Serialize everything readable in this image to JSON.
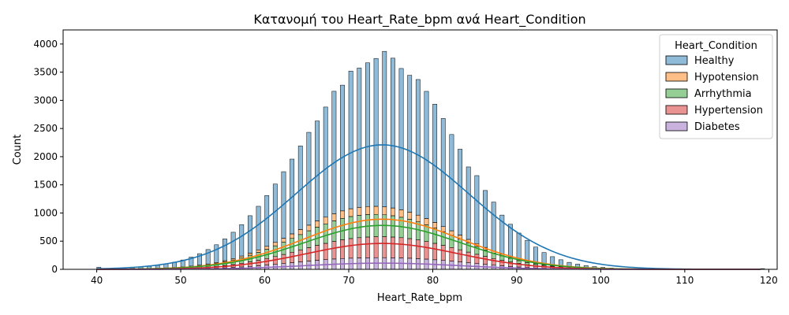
{
  "chart_data": {
    "type": "bar",
    "stacked": true,
    "title": "Κατανομή του Heart_Rate_bpm ανά Heart_Condition",
    "xlabel": "Heart_Rate_bpm",
    "ylabel": "Count",
    "xlim": [
      36,
      121
    ],
    "ylim": [
      0,
      4250
    ],
    "xticks": [
      40,
      50,
      60,
      70,
      80,
      90,
      100,
      110,
      120
    ],
    "yticks": [
      0,
      500,
      1000,
      1500,
      2000,
      2500,
      3000,
      3500,
      4000
    ],
    "bin_width": 0.5,
    "x": [
      40,
      41,
      42,
      43,
      44,
      45,
      46,
      47,
      48,
      49,
      50,
      51,
      52,
      53,
      54,
      55,
      56,
      57,
      58,
      59,
      60,
      61,
      62,
      63,
      64,
      65,
      66,
      67,
      68,
      69,
      70,
      71,
      72,
      73,
      74,
      75,
      76,
      77,
      78,
      79,
      80,
      81,
      82,
      83,
      84,
      85,
      86,
      87,
      88,
      89,
      90,
      91,
      92,
      93,
      94,
      95,
      96,
      97,
      98,
      99,
      100,
      101,
      102,
      103,
      104,
      105,
      106,
      107,
      108,
      109,
      110,
      111,
      112,
      113,
      114,
      115,
      116,
      117,
      118,
      119
    ],
    "legend": {
      "title": "Heart_Condition",
      "position": "upper right"
    },
    "series": [
      {
        "name": "Diabetes",
        "color": "#9467bd",
        "values": [
          1,
          1,
          1,
          1,
          2,
          2,
          3,
          3,
          4,
          5,
          7,
          9,
          12,
          15,
          20,
          26,
          33,
          42,
          52,
          63,
          75,
          88,
          102,
          117,
          132,
          146,
          160,
          172,
          183,
          192,
          198,
          202,
          205,
          207,
          207,
          205,
          202,
          197,
          190,
          181,
          170,
          158,
          145,
          131,
          116,
          102,
          88,
          74,
          62,
          51,
          41,
          32,
          25,
          19,
          14,
          10,
          7,
          5,
          4,
          3,
          2,
          2,
          1,
          1,
          1,
          0,
          0,
          0,
          0,
          0,
          0,
          0,
          0,
          0,
          0,
          0,
          0,
          0,
          0,
          0
        ]
      },
      {
        "name": "Hypertension",
        "color": "#d62728",
        "values": [
          1,
          1,
          1,
          2,
          2,
          3,
          4,
          5,
          7,
          9,
          12,
          15,
          20,
          26,
          33,
          42,
          53,
          66,
          81,
          98,
          117,
          139,
          162,
          187,
          213,
          239,
          265,
          289,
          312,
          332,
          348,
          360,
          368,
          372,
          372,
          368,
          360,
          348,
          332,
          313,
          291,
          267,
          242,
          216,
          190,
          165,
          141,
          118,
          98,
          80,
          64,
          50,
          39,
          30,
          22,
          16,
          12,
          8,
          6,
          4,
          3,
          2,
          1,
          1,
          1,
          0,
          0,
          0,
          0,
          0,
          0,
          0,
          0,
          0,
          0,
          0,
          0,
          0,
          0,
          0
        ]
      },
      {
        "name": "Arrhythmia",
        "color": "#2ca02c",
        "values": [
          1,
          1,
          2,
          2,
          3,
          4,
          6,
          8,
          11,
          14,
          19,
          25,
          32,
          41,
          52,
          65,
          80,
          98,
          118,
          140,
          164,
          190,
          217,
          245,
          272,
          299,
          324,
          346,
          365,
          380,
          391,
          397,
          399,
          396,
          389,
          378,
          362,
          343,
          321,
          297,
          271,
          244,
          217,
          190,
          164,
          139,
          116,
          96,
          78,
          62,
          49,
          38,
          29,
          22,
          16,
          12,
          8,
          6,
          4,
          3,
          2,
          1,
          1,
          1,
          0,
          0,
          0,
          0,
          0,
          0,
          0,
          0,
          0,
          0,
          0,
          0,
          0,
          0,
          0,
          0
        ]
      },
      {
        "name": "Hypotension",
        "color": "#ff7f0e",
        "values": [
          0,
          0,
          1,
          1,
          1,
          2,
          2,
          3,
          4,
          5,
          6,
          8,
          10,
          13,
          16,
          20,
          25,
          30,
          37,
          44,
          52,
          61,
          70,
          80,
          90,
          100,
          110,
          119,
          127,
          133,
          138,
          141,
          143,
          143,
          141,
          138,
          133,
          127,
          119,
          110,
          100,
          90,
          80,
          70,
          61,
          52,
          44,
          37,
          30,
          25,
          20,
          16,
          13,
          10,
          8,
          6,
          5,
          4,
          3,
          2,
          2,
          1,
          1,
          1,
          0,
          0,
          0,
          0,
          0,
          0,
          0,
          0,
          0,
          0,
          0,
          0,
          0,
          0,
          0,
          0
        ]
      },
      {
        "name": "Healthy",
        "color": "#1f77b4",
        "values": [
          34,
          7,
          9,
          14,
          19,
          27,
          37,
          51,
          70,
          93,
          122,
          160,
          204,
          256,
          315,
          387,
          467,
          558,
          664,
          774,
          902,
          1036,
          1182,
          1328,
          1483,
          1648,
          1775,
          1955,
          2174,
          2233,
          2445,
          2473,
          2551,
          2626,
          2761,
          2660,
          2509,
          2430,
          2408,
          2259,
          2100,
          1919,
          1709,
          1526,
          1287,
          1206,
          1011,
          869,
          695,
          582,
          470,
          379,
          289,
          217,
          165,
          126,
          92,
          69,
          50,
          37,
          26,
          16,
          12,
          9,
          7,
          4,
          3,
          2,
          2,
          1,
          1,
          1,
          1,
          1,
          1,
          1,
          1,
          1,
          1,
          12
        ]
      }
    ],
    "kde": [
      {
        "name": "Healthy",
        "color": "#1f77b4",
        "peak": 2210,
        "center": 74,
        "sigma": 10.3
      },
      {
        "name": "Hypotension",
        "color": "#ff7f0e",
        "peak": 890,
        "center": 74,
        "sigma": 9.3
      },
      {
        "name": "Arrhythmia",
        "color": "#2ca02c",
        "peak": 780,
        "center": 74,
        "sigma": 9.3
      },
      {
        "name": "Hypertension",
        "color": "#d62728",
        "peak": 460,
        "center": 74,
        "sigma": 9.0
      },
      {
        "name": "Diabetes",
        "color": "#9467bd",
        "peak": 110,
        "center": 74,
        "sigma": 9.0
      }
    ]
  }
}
